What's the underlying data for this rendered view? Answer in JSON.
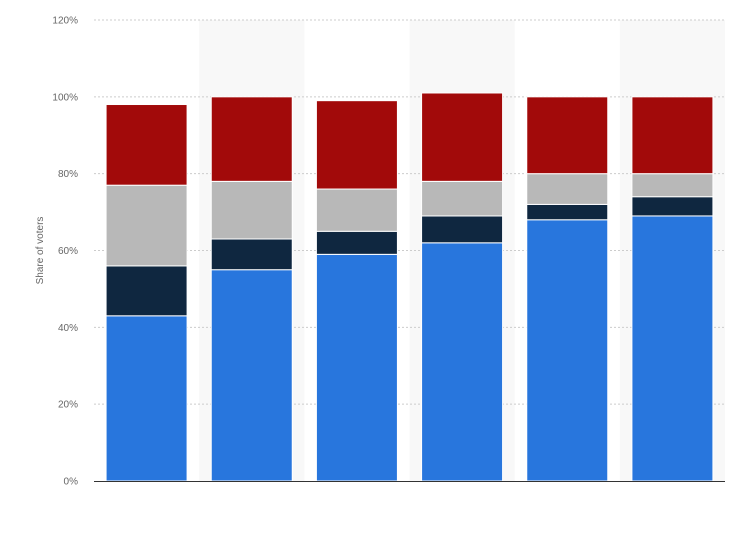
{
  "chart_data": {
    "type": "bar",
    "stacked": true,
    "title": "",
    "xlabel": "",
    "ylabel": "Share of voters",
    "ylim": [
      0,
      120
    ],
    "yticks": [
      0,
      20,
      40,
      60,
      80,
      100,
      120
    ],
    "ytick_format": "{v}%",
    "grid": true,
    "legend": "none",
    "categories": [
      "",
      "",
      "",
      "",
      "",
      ""
    ],
    "series": [
      {
        "color": "#2876dd",
        "values": [
          43,
          55,
          59,
          62,
          68,
          69
        ]
      },
      {
        "color": "#0f2740",
        "values": [
          13,
          8,
          6,
          7,
          4,
          5
        ]
      },
      {
        "color": "#b8b8b8",
        "values": [
          21,
          15,
          11,
          9,
          8,
          6
        ]
      },
      {
        "color": "#a20a0a",
        "values": [
          21,
          22,
          23,
          23,
          20,
          20
        ]
      }
    ]
  }
}
